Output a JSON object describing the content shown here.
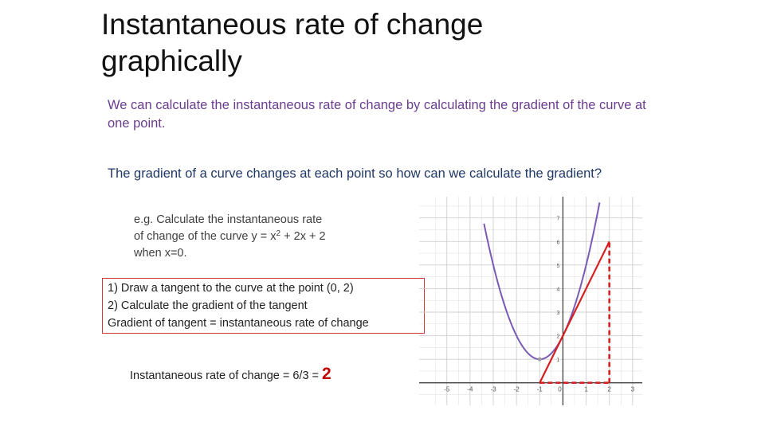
{
  "slide": {
    "title": "Instantaneous rate of change graphically",
    "intro": "We can calculate the instantaneous rate of change by calculating the gradient of the curve at one point.",
    "question": "The gradient of a curve changes at each point so how can we calculate the gradient?",
    "example": {
      "line1": "e.g. Calculate the instantaneous rate",
      "line2_prefix": "of change of the curve y = x",
      "line2_exp": "2",
      "line2_suffix": " + 2x + 2",
      "line3": "when x=0."
    },
    "steps": {
      "step1": "1)   Draw a tangent to the curve at the point (0, 2)",
      "step2": "2)   Calculate the gradient of the tangent",
      "conclusion": "Gradient of tangent = instantaneous rate of change"
    },
    "result": {
      "text": "Instantaneous rate of change = 6/3 =",
      "value": "2"
    }
  },
  "chart_data": {
    "type": "line",
    "xlim": [
      -5,
      3
    ],
    "ylim": [
      0,
      7
    ],
    "x_tick_labels": [
      "-5",
      "-4",
      "-3",
      "-2",
      "-1",
      "0",
      "1",
      "2",
      "3"
    ],
    "y_tick_labels": [
      "1",
      "2",
      "3",
      "4",
      "5",
      "6",
      "7"
    ],
    "grid": true,
    "curve": {
      "equation": "y = x^2 + 2x + 2",
      "color": "#7a5ab5"
    },
    "tangent": {
      "point": [
        0,
        2
      ],
      "slope": 2,
      "x_range": [
        -1,
        2
      ],
      "color": "#d42020"
    },
    "vertex": [
      -1,
      1
    ],
    "run": {
      "from": [
        -1,
        0
      ],
      "to": [
        2,
        0
      ],
      "value": 3
    },
    "rise": {
      "from": [
        2,
        0
      ],
      "to": [
        2,
        6
      ],
      "value": 6
    },
    "axis_color": "#333333",
    "grid_color": "#cfcfcf"
  }
}
